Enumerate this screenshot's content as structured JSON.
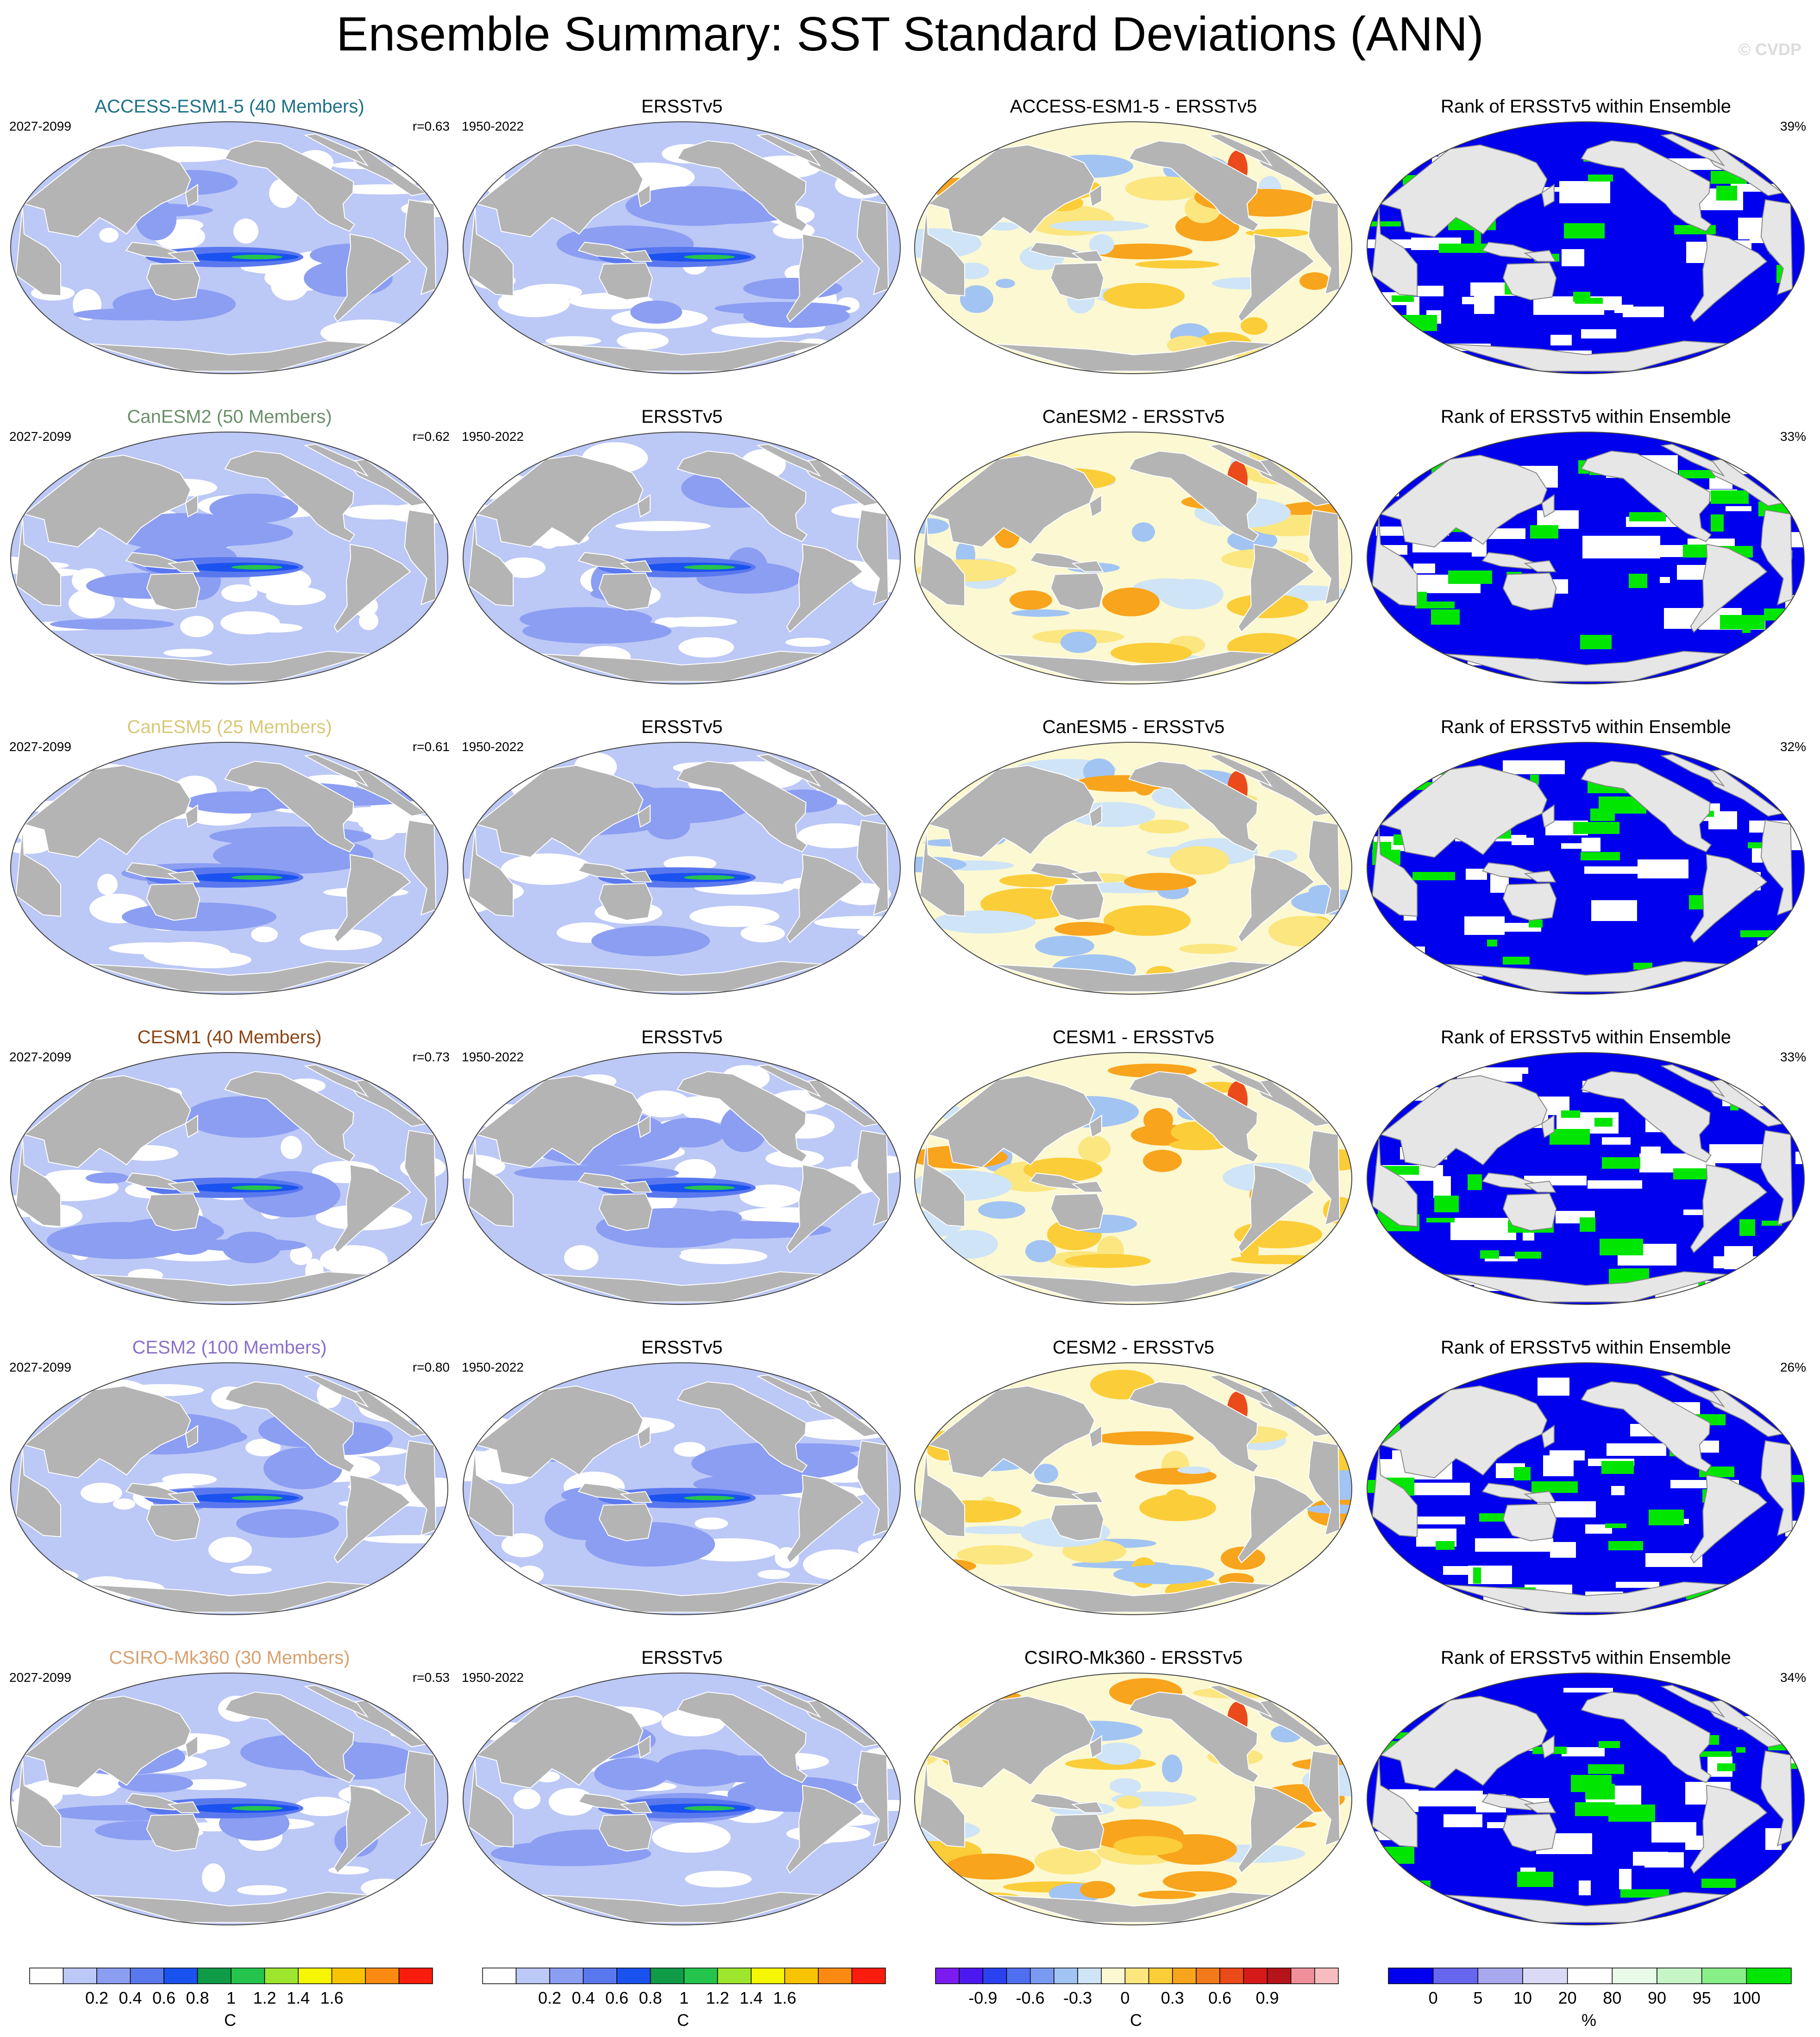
{
  "title": "Ensemble Summary: SST Standard Deviations (ANN)",
  "credit": "© CVDP",
  "colors": {
    "land": "#b4b4b4",
    "land_rank": "#e6e6e6",
    "coast": "#ffffff",
    "sd_scale": [
      "#ffffff",
      "#bcc8f6",
      "#8c9ef2",
      "#5a78ee",
      "#1a52f0",
      "#0f9b47",
      "#25c44c",
      "#9ee62e",
      "#f6f600",
      "#f8c400",
      "#fa8a12",
      "#fa1c0c"
    ],
    "diff_scale": [
      "#7a1cf0",
      "#4b19f0",
      "#2a41f0",
      "#4f6ef0",
      "#7a9af2",
      "#a2c4f3",
      "#cfe4f6",
      "#fbf8d2",
      "#fce680",
      "#fbcd38",
      "#f8a41c",
      "#f27a1a",
      "#eb4a1a",
      "#d61a1a",
      "#b4141a",
      "#ef8f99",
      "#f7bcbf"
    ],
    "rank_scale": [
      "#0000ee",
      "#6666ee",
      "#a8a8ee",
      "#dadaf6",
      "#ffffff",
      "#e8fbe8",
      "#c6f6c6",
      "#88ee88",
      "#00e600"
    ]
  },
  "rows": [
    {
      "model": "ACCESS-ESM1-5 (40 Members)",
      "model_color": "#1e7187",
      "period": "2027-2099",
      "r": "r=0.63",
      "obs_title": "ERSSTv5",
      "obs_period": "1950-2022",
      "diff_title": "ACCESS-ESM1-5 - ERSSTv5",
      "rank_title": "Rank of ERSSTv5 within Ensemble",
      "rank_pct": "39%"
    },
    {
      "model": "CanESM2 (50 Members)",
      "model_color": "#6b8f6b",
      "period": "2027-2099",
      "r": "r=0.62",
      "obs_title": "ERSSTv5",
      "obs_period": "1950-2022",
      "diff_title": "CanESM2 - ERSSTv5",
      "rank_title": "Rank of ERSSTv5 within Ensemble",
      "rank_pct": "33%"
    },
    {
      "model": "CanESM5 (25 Members)",
      "model_color": "#d8c878",
      "period": "2027-2099",
      "r": "r=0.61",
      "obs_title": "ERSSTv5",
      "obs_period": "1950-2022",
      "diff_title": "CanESM5 - ERSSTv5",
      "rank_title": "Rank of ERSSTv5 within Ensemble",
      "rank_pct": "32%"
    },
    {
      "model": "CESM1 (40 Members)",
      "model_color": "#8b4513",
      "period": "2027-2099",
      "r": "r=0.73",
      "obs_title": "ERSSTv5",
      "obs_period": "1950-2022",
      "diff_title": "CESM1 - ERSSTv5",
      "rank_title": "Rank of ERSSTv5 within Ensemble",
      "rank_pct": "33%"
    },
    {
      "model": "CESM2 (100 Members)",
      "model_color": "#8a70c8",
      "period": "2027-2099",
      "r": "r=0.80",
      "obs_title": "ERSSTv5",
      "obs_period": "1950-2022",
      "diff_title": "CESM2 - ERSSTv5",
      "rank_title": "Rank of ERSSTv5 within Ensemble",
      "rank_pct": "26%"
    },
    {
      "model": "CSIRO-Mk360 (30 Members)",
      "model_color": "#d8a070",
      "period": "2027-2099",
      "r": "r=0.53",
      "obs_title": "ERSSTv5",
      "obs_period": "1950-2022",
      "diff_title": "CSIRO-Mk360 - ERSSTv5",
      "rank_title": "Rank of ERSSTv5 within Ensemble",
      "rank_pct": "34%"
    }
  ],
  "colorbars": [
    {
      "labels": [
        "0.2",
        "0.4",
        "0.6",
        "0.8",
        "1",
        "1.2",
        "1.4",
        "1.6"
      ],
      "unit": "C",
      "scale": "sd_scale"
    },
    {
      "labels": [
        "0.2",
        "0.4",
        "0.6",
        "0.8",
        "1",
        "1.2",
        "1.4",
        "1.6"
      ],
      "unit": "C",
      "scale": "sd_scale"
    },
    {
      "labels": [
        "-0.9",
        "-0.6",
        "-0.3",
        "0",
        "0.3",
        "0.6",
        "0.9"
      ],
      "unit": "C",
      "scale": "diff_scale"
    },
    {
      "labels": [
        "0",
        "5",
        "10",
        "20",
        "80",
        "90",
        "95",
        "100"
      ],
      "unit": "%",
      "scale": "rank_scale"
    }
  ],
  "chart_data": {
    "type": "heatmap",
    "title": "Ensemble Summary: SST Standard Deviations (ANN)",
    "layout": "6 rows x 4 columns of global map panels (Robinson projection)",
    "columns": [
      "ensemble mean SST standard deviation",
      "observed SST standard deviation",
      "ensemble minus observation",
      "rank of observation within ensemble"
    ],
    "models": [
      "ACCESS-ESM1-5",
      "CanESM2",
      "CanESM5",
      "CESM1",
      "CESM2",
      "CSIRO-Mk360"
    ],
    "members": [
      40,
      50,
      25,
      40,
      100,
      30
    ],
    "pattern_correlation": [
      0.63,
      0.62,
      0.61,
      0.73,
      0.8,
      0.53
    ],
    "rank_percent": [
      39,
      33,
      32,
      33,
      26,
      34
    ],
    "model_period": "2027-2099",
    "observation": "ERSSTv5",
    "observation_period": "1950-2022",
    "sd_colorbar_ticks": [
      0.2,
      0.4,
      0.6,
      0.8,
      1,
      1.2,
      1.4,
      1.6
    ],
    "diff_colorbar_ticks": [
      -0.9,
      -0.6,
      -0.3,
      0,
      0.3,
      0.6,
      0.9
    ],
    "rank_colorbar_ticks": [
      0,
      5,
      10,
      20,
      80,
      90,
      95,
      100
    ],
    "units": {
      "sd": "C",
      "diff": "C",
      "rank": "%"
    }
  }
}
